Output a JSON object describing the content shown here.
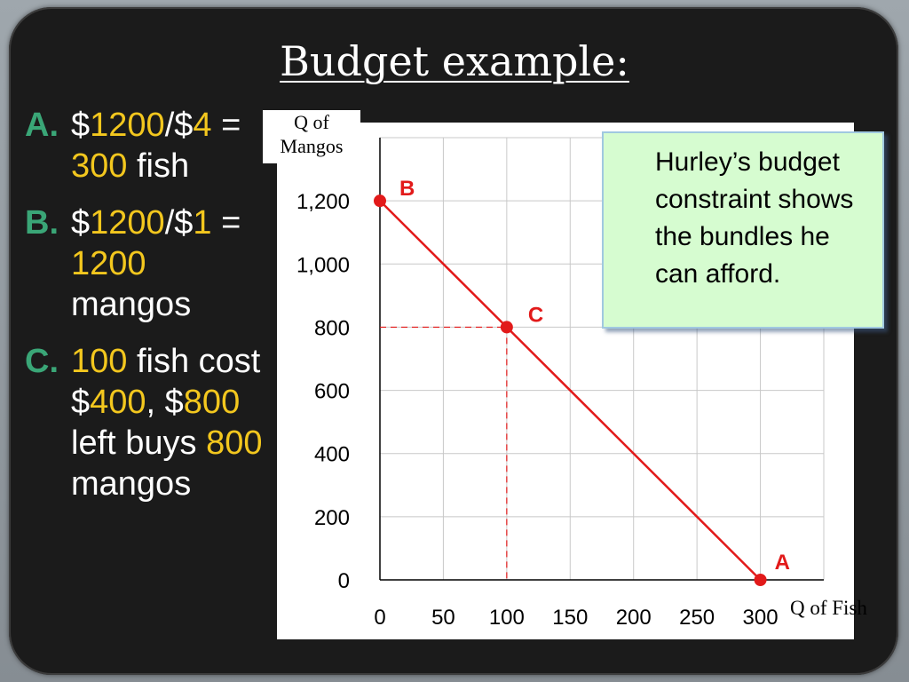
{
  "slide": {
    "title": "Budget example:",
    "items": [
      {
        "label": "A.",
        "parts": [
          {
            "t": " $",
            "hl": false
          },
          {
            "t": "1200",
            "hl": true
          },
          {
            "t": "/$",
            "hl": false
          },
          {
            "t": "4",
            "hl": true
          },
          {
            "t": " = ",
            "hl": false
          },
          {
            "t": "300",
            "hl": true
          },
          {
            "t": " fish",
            "hl": false
          }
        ]
      },
      {
        "label": "B.",
        "parts": [
          {
            "t": "$",
            "hl": false
          },
          {
            "t": "1200",
            "hl": true
          },
          {
            "t": "/$",
            "hl": false
          },
          {
            "t": "1",
            "hl": true
          },
          {
            "t": " = ",
            "hl": false
          },
          {
            "t": "1200",
            "hl": true
          },
          {
            "t": " mangos",
            "hl": false
          }
        ]
      },
      {
        "label": "C.",
        "parts": [
          {
            "t": " ",
            "hl": false
          },
          {
            "t": "100",
            "hl": true
          },
          {
            "t": " fish cost $",
            "hl": false
          },
          {
            "t": "400",
            "hl": true
          },
          {
            "t": ", $",
            "hl": false
          },
          {
            "t": "800",
            "hl": true
          },
          {
            "t": " left buys ",
            "hl": false
          },
          {
            "t": "800",
            "hl": true
          },
          {
            "t": " mangos",
            "hl": false
          }
        ]
      }
    ],
    "note": "Hurley’s budget constraint shows the bundles he can afford."
  },
  "colors": {
    "label": "#3aa677",
    "highlight": "#f3c71e",
    "line": "#e21a1a",
    "grid": "#c8c8c8",
    "note_bg": "#d6fcd0"
  },
  "chart_data": {
    "type": "line",
    "xlabel": "Q of Fish",
    "ylabel": "Q of\nMangos",
    "xlim": [
      0,
      350
    ],
    "ylim": [
      0,
      1400
    ],
    "x_ticks": [
      0,
      50,
      100,
      150,
      200,
      250,
      300
    ],
    "y_ticks": [
      0,
      200,
      400,
      600,
      800,
      1000,
      1200
    ],
    "x_tick_labels": [
      "0",
      "50",
      "100",
      "150",
      "200",
      "250",
      "300"
    ],
    "y_tick_labels": [
      "0",
      "200",
      "400",
      "600",
      "800",
      "1,000",
      "1,200"
    ],
    "grid": true,
    "series": [
      {
        "x": [
          0,
          300
        ],
        "y": [
          1200,
          0
        ]
      }
    ],
    "points": [
      {
        "label": "B",
        "x": 0,
        "y": 1200
      },
      {
        "label": "C",
        "x": 100,
        "y": 800
      },
      {
        "label": "A",
        "x": 300,
        "y": 0
      }
    ],
    "guides": [
      {
        "x": 100,
        "y": 800
      }
    ]
  }
}
